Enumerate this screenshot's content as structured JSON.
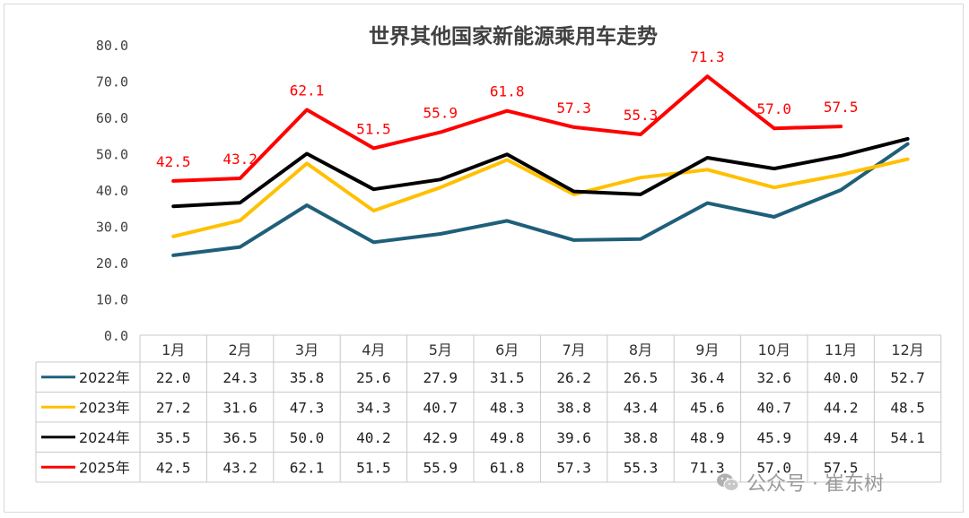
{
  "chart_data": {
    "type": "line",
    "title": "世界其他国家新能源乘用车走势",
    "categories": [
      "1月",
      "2月",
      "3月",
      "4月",
      "5月",
      "6月",
      "7月",
      "8月",
      "9月",
      "10月",
      "11月",
      "12月"
    ],
    "ylim": [
      0,
      80
    ],
    "yticks": [
      "0.0",
      "10.0",
      "20.0",
      "30.0",
      "40.0",
      "50.0",
      "60.0",
      "70.0",
      "80.0"
    ],
    "grid": false,
    "legend": "data-table-left",
    "data_labels_series": "2025年",
    "series": [
      {
        "name": "2022年",
        "color": "#1f5f7a",
        "values": [
          22.0,
          24.3,
          35.8,
          25.6,
          27.9,
          31.5,
          26.2,
          26.5,
          36.4,
          32.6,
          40.0,
          52.7
        ],
        "labels": [
          "22.0",
          "24.3",
          "35.8",
          "25.6",
          "27.9",
          "31.5",
          "26.2",
          "26.5",
          "36.4",
          "32.6",
          "40.0",
          "52.7"
        ]
      },
      {
        "name": "2023年",
        "color": "#ffc000",
        "values": [
          27.2,
          31.6,
          47.3,
          34.3,
          40.7,
          48.3,
          38.8,
          43.4,
          45.6,
          40.7,
          44.2,
          48.5
        ],
        "labels": [
          "27.2",
          "31.6",
          "47.3",
          "34.3",
          "40.7",
          "48.3",
          "38.8",
          "43.4",
          "45.6",
          "40.7",
          "44.2",
          "48.5"
        ]
      },
      {
        "name": "2024年",
        "color": "#000000",
        "values": [
          35.5,
          36.5,
          50.0,
          40.2,
          42.9,
          49.8,
          39.6,
          38.8,
          48.9,
          45.9,
          49.4,
          54.1
        ],
        "labels": [
          "35.5",
          "36.5",
          "50.0",
          "40.2",
          "42.9",
          "49.8",
          "39.6",
          "38.8",
          "48.9",
          "45.9",
          "49.4",
          "54.1"
        ]
      },
      {
        "name": "2025年",
        "color": "#ff0000",
        "values": [
          42.5,
          43.2,
          62.1,
          51.5,
          55.9,
          61.8,
          57.3,
          55.3,
          71.3,
          57.0,
          57.5,
          null
        ],
        "labels": [
          "42.5",
          "43.2",
          "62.1",
          "51.5",
          "55.9",
          "61.8",
          "57.3",
          "55.3",
          "71.3",
          "57.0",
          "57.5",
          ""
        ]
      }
    ]
  },
  "watermark": {
    "icon": "wechat-icon",
    "text": "公众号 · 崔东树"
  }
}
